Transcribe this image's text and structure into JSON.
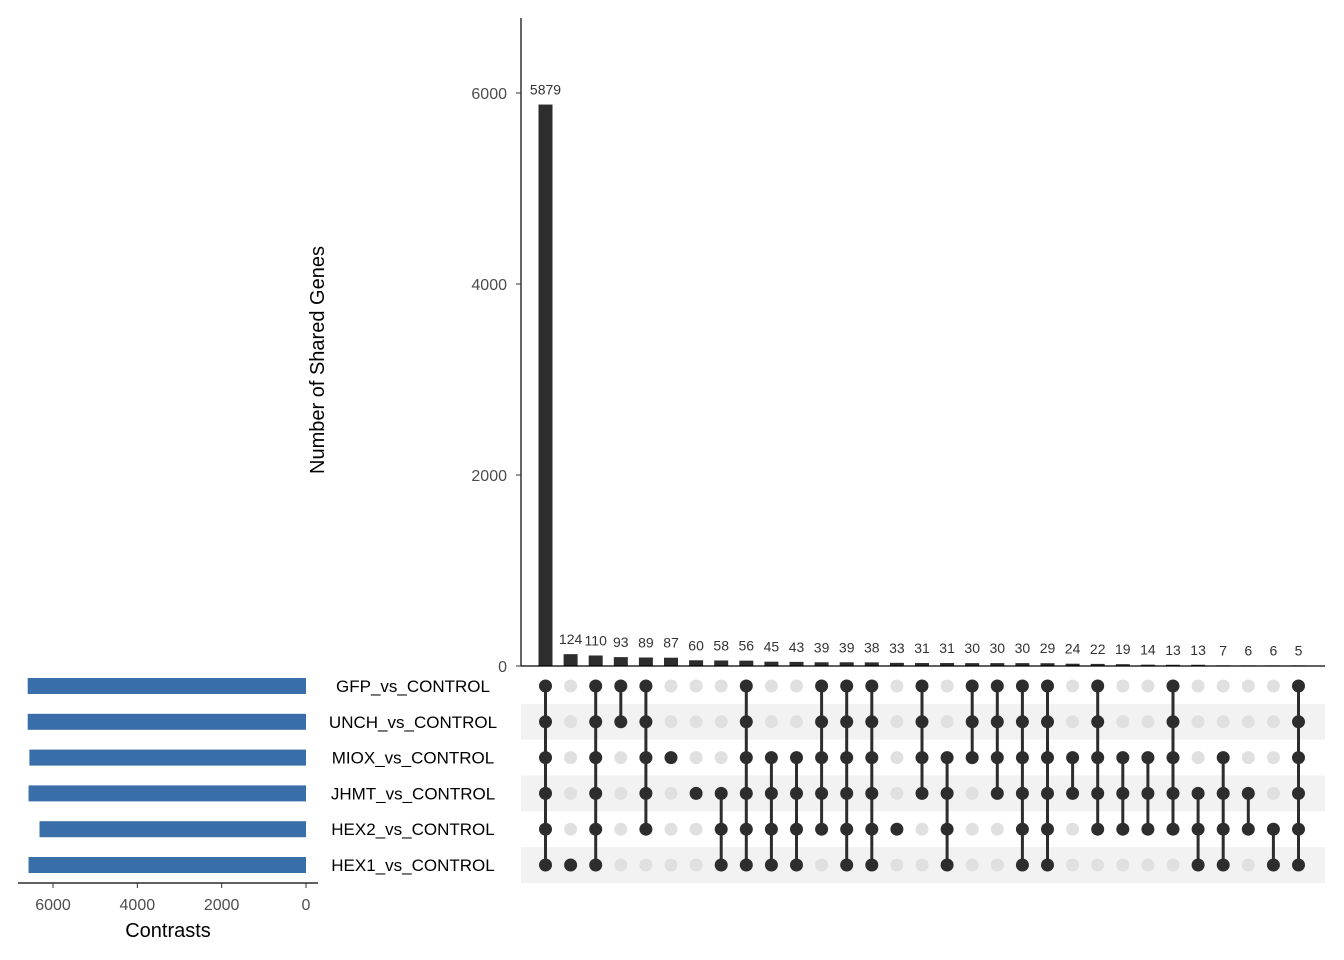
{
  "chart_data": {
    "type": "bar",
    "subtype": "upset",
    "ylabel": "Number of Shared Genes",
    "yticks": [
      0,
      2000,
      4000,
      6000
    ],
    "ylim": [
      0,
      6800
    ],
    "sets": [
      "GFP_vs_CONTROL",
      "UNCH_vs_CONTROL",
      "MIOX_vs_CONTROL",
      "JHMT_vs_CONTROL",
      "HEX2_vs_CONTROL",
      "HEX1_vs_CONTROL"
    ],
    "set_size_xlabel": "Contrasts",
    "set_size_ticks": [
      6000,
      4000,
      2000,
      0
    ],
    "set_size_xlim": [
      0,
      6800
    ],
    "set_sizes": [
      6600,
      6600,
      6560,
      6580,
      6320,
      6580
    ],
    "intersections": [
      {
        "value": 5879,
        "label": "5879",
        "members": [
          0,
          1,
          2,
          3,
          4,
          5
        ]
      },
      {
        "value": 124,
        "label": "124",
        "members": [
          5
        ]
      },
      {
        "value": 110,
        "label": "110",
        "members": [
          0,
          1,
          2,
          3,
          4,
          5
        ]
      },
      {
        "value": 93,
        "label": "93",
        "members": [
          0,
          1
        ]
      },
      {
        "value": 89,
        "label": "89",
        "members": [
          0,
          1,
          2,
          3,
          4
        ]
      },
      {
        "value": 87,
        "label": "87",
        "members": [
          2
        ]
      },
      {
        "value": 60,
        "label": "60",
        "members": [
          3
        ]
      },
      {
        "value": 58,
        "label": "58",
        "members": [
          3,
          4,
          5
        ]
      },
      {
        "value": 56,
        "label": "56",
        "members": [
          0,
          1,
          2,
          3,
          4,
          5
        ]
      },
      {
        "value": 45,
        "label": "45",
        "members": [
          2,
          3,
          4,
          5
        ]
      },
      {
        "value": 43,
        "label": "43",
        "members": [
          2,
          3,
          4,
          5
        ]
      },
      {
        "value": 39,
        "label": "39",
        "members": [
          0,
          1,
          2,
          3,
          4
        ]
      },
      {
        "value": 39,
        "label": "39",
        "members": [
          0,
          1,
          2,
          3,
          4,
          5
        ]
      },
      {
        "value": 38,
        "label": "38",
        "members": [
          0,
          1,
          2,
          3,
          4,
          5
        ]
      },
      {
        "value": 33,
        "label": "33",
        "members": [
          4
        ]
      },
      {
        "value": 31,
        "label": "31",
        "members": [
          0,
          1,
          2,
          3
        ]
      },
      {
        "value": 31,
        "label": "31",
        "members": [
          2,
          3,
          4,
          5
        ]
      },
      {
        "value": 30,
        "label": "30",
        "members": [
          0,
          1,
          2
        ]
      },
      {
        "value": 30,
        "label": "30",
        "members": [
          0,
          1,
          2,
          3
        ]
      },
      {
        "value": 30,
        "label": "30",
        "members": [
          0,
          1,
          2,
          3,
          4,
          5
        ]
      },
      {
        "value": 29,
        "label": "29",
        "members": [
          0,
          1,
          2,
          3,
          4,
          5
        ]
      },
      {
        "value": 24,
        "label": "24",
        "members": [
          2,
          3
        ]
      },
      {
        "value": 22,
        "label": "22",
        "members": [
          0,
          1,
          2,
          3,
          4
        ]
      },
      {
        "value": 19,
        "label": "19",
        "members": [
          2,
          3,
          4
        ]
      },
      {
        "value": 14,
        "label": "14",
        "members": [
          2,
          3,
          4
        ]
      },
      {
        "value": 13,
        "label": "13",
        "members": [
          0,
          1,
          2,
          3,
          4
        ]
      },
      {
        "value": 13,
        "label": "13",
        "members": [
          3,
          4,
          5
        ]
      },
      {
        "value": 7,
        "label": "7",
        "members": [
          2,
          3,
          4,
          5
        ]
      },
      {
        "value": 6,
        "label": "6",
        "members": [
          3,
          4
        ]
      },
      {
        "value": 6,
        "label": "6",
        "members": [
          4,
          5
        ]
      },
      {
        "value": 5,
        "label": "5",
        "members": [
          0,
          1,
          2,
          3,
          4,
          5
        ]
      }
    ],
    "colors": {
      "bar": "#2d2d2d",
      "set_bar": "#3a6ea8",
      "dot_on": "#2d2d2d",
      "dot_off": "#e0e0e0",
      "stripe": "#f2f2f2"
    }
  }
}
